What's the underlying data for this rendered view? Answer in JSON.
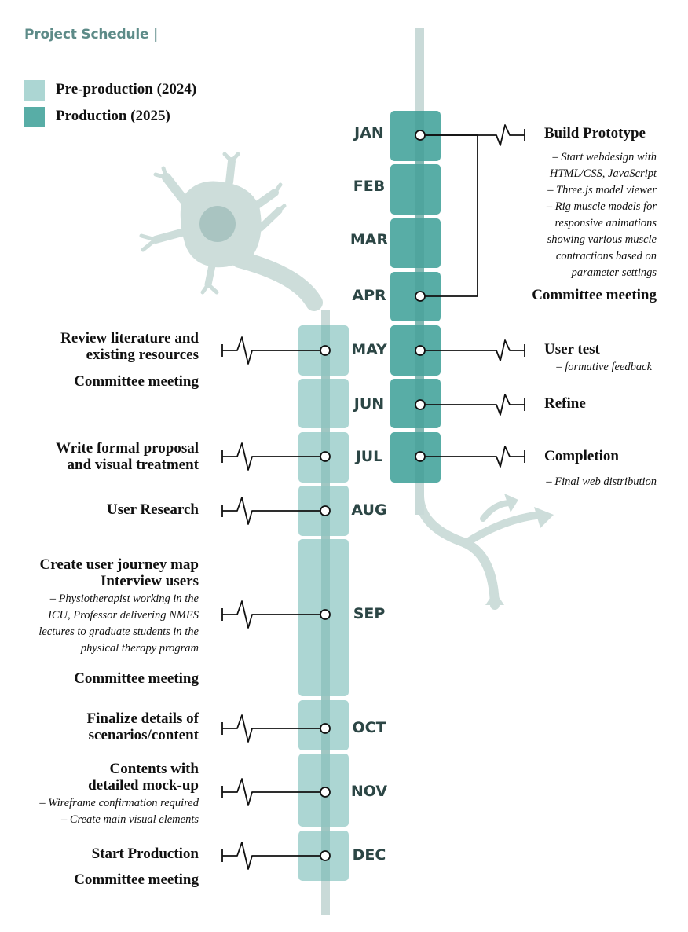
{
  "title": "Project Schedule |",
  "legend": [
    {
      "label": "Pre-production (2024)",
      "color": "#acd6d3"
    },
    {
      "label": "Production (2025)",
      "color": "#58ada6"
    }
  ],
  "colors": {
    "pre": "#acd6d3",
    "prod": "#58ada6",
    "spine": "#c9dad8",
    "neuron": "#cdddda",
    "nucleus": "#a9c4c1",
    "month_text": "#2c4645",
    "title": "#5d8b88"
  },
  "months": {
    "jan": "JAN",
    "feb": "FEB",
    "mar": "MAR",
    "apr": "APR",
    "may": "MAY",
    "jun": "JUN",
    "jul": "JUL",
    "aug": "AUG",
    "sep": "SEP",
    "oct": "OCT",
    "nov": "NOV",
    "dec": "DEC"
  },
  "production": {
    "jan": {
      "title": "Build Prototype",
      "details": [
        "– Start webdesign with",
        "HTML/CSS, JavaScript",
        "– Three.js model viewer",
        "– Rig muscle models for",
        "responsive animations",
        "showing various muscle",
        "contractions based on",
        "parameter settings"
      ]
    },
    "apr": {
      "title": "Committee meeting"
    },
    "may": {
      "title": "User test",
      "detail": "– formative feedback"
    },
    "jun": {
      "title": "Refine"
    },
    "jul": {
      "title": "Completion",
      "detail": "– Final web distribution"
    }
  },
  "preproduction": {
    "may": {
      "lines": [
        "Review literature and",
        "existing resources"
      ],
      "meeting": "Committee meeting"
    },
    "jul": {
      "lines": [
        "Write formal proposal",
        "and visual treatment"
      ]
    },
    "aug": {
      "lines": [
        "User Research"
      ]
    },
    "sep": {
      "lines": [
        "Create user journey map",
        "Interview users"
      ],
      "details": [
        "– Physiotherapist working in the",
        "ICU, Professor delivering NMES",
        "lectures to graduate students in the",
        "physical therapy program"
      ],
      "meeting": "Committee meeting"
    },
    "oct": {
      "lines": [
        "Finalize details of",
        "scenarios/content"
      ]
    },
    "nov": {
      "lines": [
        "Contents with",
        "detailed mock-up"
      ],
      "details": [
        "– Wireframe confirmation required",
        "– Create main visual elements"
      ]
    },
    "dec": {
      "lines": [
        "Start Production"
      ],
      "meeting": "Committee meeting"
    }
  }
}
